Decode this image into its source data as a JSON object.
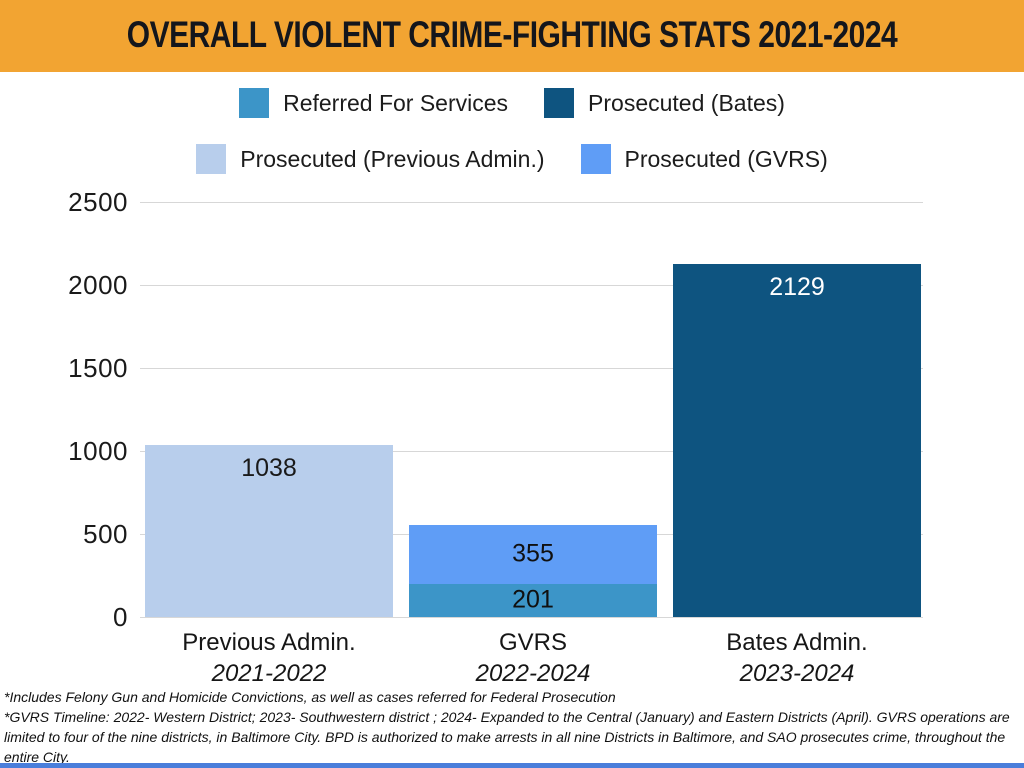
{
  "banner": {
    "title": "OVERALL VIOLENT CRIME-FIGHTING STATS 2021-2024",
    "bg_color": "#F2A432",
    "text_color": "#14161c"
  },
  "legend": {
    "rows": [
      [
        {
          "label": "Referred For Services",
          "color": "#3C95C8"
        },
        {
          "label": "Prosecuted (Bates)",
          "color": "#0E5480"
        }
      ],
      [
        {
          "label": "Prosecuted (Previous Admin.)",
          "color": "#B8CEEC"
        },
        {
          "label": "Prosecuted (GVRS)",
          "color": "#5F9DF6"
        }
      ]
    ]
  },
  "chart_data": {
    "type": "bar",
    "stacked": true,
    "title": "OVERALL VIOLENT CRIME-FIGHTING STATS 2021-2024",
    "grid": true,
    "legend_position": "top",
    "ylim": [
      0,
      2500
    ],
    "yticks": [
      0,
      500,
      1000,
      1500,
      2000,
      2500
    ],
    "gridline_color": "#d7d7d7",
    "categories": [
      "Previous Admin.",
      "GVRS",
      "Bates Admin."
    ],
    "category_sublabels": [
      "2021-2022",
      "2022-2024",
      "2023-2024"
    ],
    "series": [
      {
        "name": "Prosecuted (Previous Admin.)",
        "color": "#B8CEEC",
        "values": [
          1038,
          0,
          0
        ]
      },
      {
        "name": "Referred For Services",
        "color": "#3C95C8",
        "values": [
          0,
          201,
          0
        ]
      },
      {
        "name": "Prosecuted (GVRS)",
        "color": "#5F9DF6",
        "values": [
          0,
          355,
          0
        ]
      },
      {
        "name": "Prosecuted (Bates)",
        "color": "#0E5480",
        "values": [
          0,
          0,
          2129
        ]
      }
    ],
    "bars": [
      {
        "category": "Previous Admin.",
        "sublabel": "2021-2022",
        "segments": [
          {
            "series": "Prosecuted (Previous Admin.)",
            "value": 1038,
            "label": "1038",
            "color": "#B8CEEC",
            "text_color": "#1a1a1a",
            "label_at": "top"
          }
        ]
      },
      {
        "category": "GVRS",
        "sublabel": "2022-2024",
        "segments": [
          {
            "series": "Referred For Services",
            "value": 201,
            "label": "201",
            "color": "#3C95C8",
            "text_color": "#101010",
            "label_at": "center"
          },
          {
            "series": "Prosecuted (GVRS)",
            "value": 355,
            "label": "355",
            "color": "#5F9DF6",
            "text_color": "#101010",
            "label_at": "center"
          }
        ]
      },
      {
        "category": "Bates Admin.",
        "sublabel": "2023-2024",
        "segments": [
          {
            "series": "Prosecuted (Bates)",
            "value": 2129,
            "label": "2129",
            "color": "#0E5480",
            "text_color": "#ffffff",
            "label_at": "top"
          }
        ]
      }
    ]
  },
  "footnotes": [
    "*Includes Felony Gun and Homicide Convictions, as well as cases referred for Federal Prosecution",
    "*GVRS Timeline: 2022- Western District; 2023- Southwestern district ; 2024- Expanded to the Central (January) and Eastern Districts (April). GVRS operations are limited to four of the nine districts, in Baltimore City. BPD is authorized to make arrests in all nine Districts in Baltimore, and SAO prosecutes crime, throughout the entire City."
  ],
  "footer_bar_color": "#4A7EDB"
}
